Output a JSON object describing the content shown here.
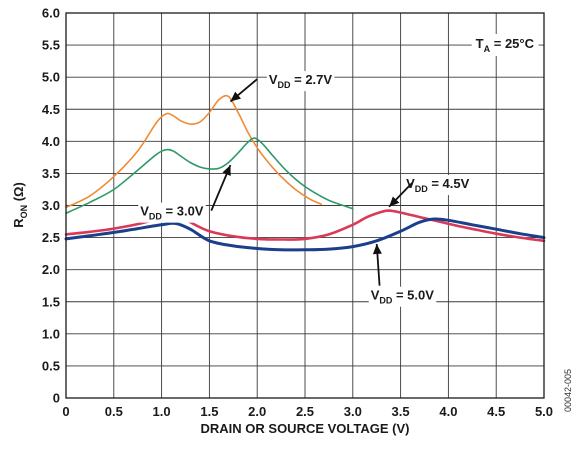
{
  "chart_data": {
    "type": "line",
    "xlabel": "DRAIN OR SOURCE VOLTAGE (V)",
    "ylabel": {
      "main": "R",
      "sub": "ON",
      "suffix": " (Ω)"
    },
    "xlim": [
      0,
      5
    ],
    "ylim": [
      0,
      6
    ],
    "xticks": [
      "0",
      "0.5",
      "1.0",
      "1.5",
      "2.0",
      "2.5",
      "3.0",
      "3.5",
      "4.0",
      "4.5",
      "5.0"
    ],
    "yticks": [
      "0",
      "0.5",
      "1.0",
      "1.5",
      "2.0",
      "2.5",
      "3.0",
      "3.5",
      "4.0",
      "4.5",
      "5.0",
      "5.5",
      "6.0"
    ],
    "grid": true,
    "condition": {
      "main": "T",
      "sub": "A",
      "suffix": " = 25°C"
    },
    "watermark": "00042-005",
    "series": [
      {
        "label": {
          "main": "V",
          "sub": "DD",
          "suffix": " = 2.7V"
        },
        "color": "#f08a33",
        "x": [
          0,
          0.25,
          0.5,
          0.75,
          0.95,
          1.05,
          1.12,
          1.2,
          1.3,
          1.4,
          1.5,
          1.6,
          1.7,
          1.8,
          1.9,
          2.0,
          2.1,
          2.25,
          2.4,
          2.55,
          2.67
        ],
        "y": [
          2.97,
          3.15,
          3.45,
          3.85,
          4.3,
          4.43,
          4.4,
          4.32,
          4.27,
          4.3,
          4.45,
          4.65,
          4.7,
          4.45,
          4.15,
          3.9,
          3.7,
          3.45,
          3.25,
          3.1,
          3.02
        ]
      },
      {
        "label": {
          "main": "V",
          "sub": "DD",
          "suffix": " = 3.0V"
        },
        "color": "#2e9a68",
        "x": [
          0,
          0.25,
          0.5,
          0.75,
          0.95,
          1.05,
          1.12,
          1.2,
          1.3,
          1.4,
          1.5,
          1.6,
          1.7,
          1.8,
          1.9,
          1.97,
          2.05,
          2.15,
          2.3,
          2.45,
          2.6,
          2.75,
          2.9,
          3.0
        ],
        "y": [
          2.88,
          3.05,
          3.25,
          3.55,
          3.8,
          3.87,
          3.85,
          3.77,
          3.67,
          3.6,
          3.57,
          3.58,
          3.67,
          3.82,
          3.98,
          4.05,
          3.97,
          3.8,
          3.55,
          3.35,
          3.2,
          3.08,
          3.0,
          2.95
        ]
      },
      {
        "label": {
          "main": "V",
          "sub": "DD",
          "suffix": " = 4.5V"
        },
        "color": "#d93a57",
        "x": [
          0,
          0.25,
          0.5,
          0.75,
          1.0,
          1.1,
          1.2,
          1.35,
          1.5,
          1.75,
          2.0,
          2.25,
          2.5,
          2.75,
          3.0,
          3.15,
          3.3,
          3.38,
          3.5,
          3.7,
          3.9,
          4.1,
          4.3,
          4.5,
          4.75,
          5.0
        ],
        "y": [
          2.55,
          2.59,
          2.64,
          2.71,
          2.8,
          2.84,
          2.82,
          2.7,
          2.6,
          2.52,
          2.48,
          2.47,
          2.48,
          2.55,
          2.7,
          2.82,
          2.9,
          2.92,
          2.89,
          2.82,
          2.75,
          2.68,
          2.62,
          2.56,
          2.5,
          2.45
        ]
      },
      {
        "label": {
          "main": "V",
          "sub": "DD",
          "suffix": " = 5.0V"
        },
        "color": "#1c3f8c",
        "x": [
          0,
          0.25,
          0.5,
          0.75,
          1.0,
          1.15,
          1.3,
          1.5,
          1.75,
          2.0,
          2.25,
          2.5,
          2.75,
          3.0,
          3.25,
          3.5,
          3.7,
          3.85,
          4.0,
          4.25,
          4.5,
          4.75,
          5.0
        ],
        "y": [
          2.48,
          2.53,
          2.58,
          2.64,
          2.7,
          2.72,
          2.63,
          2.45,
          2.37,
          2.33,
          2.31,
          2.31,
          2.32,
          2.36,
          2.45,
          2.6,
          2.74,
          2.79,
          2.77,
          2.7,
          2.63,
          2.56,
          2.5
        ]
      }
    ]
  },
  "annotations": [
    {
      "series": 0,
      "tail_x": 2.0,
      "tail_y": 4.97,
      "head_x": 1.72,
      "head_y": 4.62,
      "text_x": 2.08,
      "text_y": 4.97
    },
    {
      "series": 1,
      "tail_x": 1.52,
      "tail_y": 2.92,
      "head_x": 1.72,
      "head_y": 3.63,
      "text_x": 1.48,
      "text_y": 2.92
    },
    {
      "series": 2,
      "tail_x": 3.62,
      "tail_y": 3.35,
      "head_x": 3.38,
      "head_y": 2.98,
      "text_x": 3.62,
      "text_y": 3.35
    },
    {
      "series": 3,
      "tail_x": 3.28,
      "tail_y": 1.75,
      "head_x": 3.25,
      "head_y": 2.4,
      "text_x": 3.25,
      "text_y": 1.75
    }
  ]
}
